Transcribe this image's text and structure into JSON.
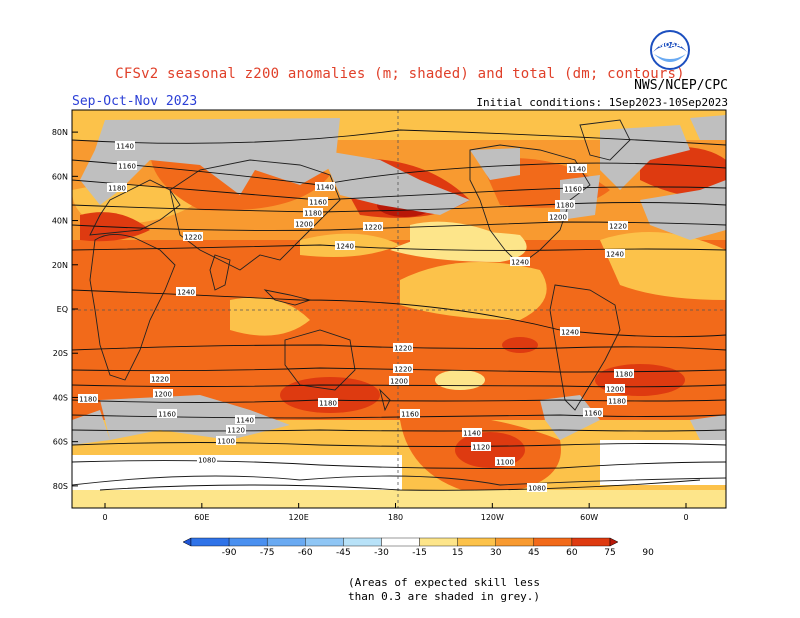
{
  "title": "CFSv2 seasonal z200 anomalies (m; shaded) and total (dm; contours)",
  "season": "Sep-Oct-Nov 2023",
  "initial_conditions": "Initial conditions: 1Sep2023-10Sep2023",
  "agency": "NWS/NCEP/CPC",
  "logo_text": "NOAA",
  "skill_note_line1": "(Areas of expected skill less",
  "skill_note_line2": "than 0.3 are shaded in grey.)",
  "lat_labels": [
    "80N",
    "60N",
    "40N",
    "20N",
    "EQ",
    "20S",
    "40S",
    "60S",
    "80S"
  ],
  "lon_labels": [
    "0",
    "60E",
    "120E",
    "180",
    "120W",
    "60W",
    "0"
  ],
  "colorbar_ticks": [
    "-90",
    "-75",
    "-60",
    "-45",
    "-30",
    "-15",
    "15",
    "30",
    "45",
    "60",
    "75",
    "90"
  ],
  "colorbar_colors": [
    "#1f55d6",
    "#2f73e8",
    "#4a90f0",
    "#6aaaf2",
    "#8fc6f5",
    "#b8e2f8",
    "#ffffff",
    "#fde58a",
    "#fcc24a",
    "#f89a30",
    "#f26a1a",
    "#de3a10",
    "#b81808"
  ],
  "contour_labels": [
    {
      "text": "1140"
    },
    {
      "text": "1160"
    },
    {
      "text": "1180"
    },
    {
      "text": "1140"
    },
    {
      "text": "1160"
    },
    {
      "text": "1180"
    },
    {
      "text": "1200"
    },
    {
      "text": "1220"
    },
    {
      "text": "1240"
    },
    {
      "text": "1220"
    },
    {
      "text": "1140"
    },
    {
      "text": "1160"
    },
    {
      "text": "1180"
    },
    {
      "text": "1200"
    },
    {
      "text": "1220"
    },
    {
      "text": "1240"
    },
    {
      "text": "1240"
    },
    {
      "text": "1240"
    },
    {
      "text": "1240"
    },
    {
      "text": "1220"
    },
    {
      "text": "1200"
    },
    {
      "text": "1220"
    },
    {
      "text": "1200"
    },
    {
      "text": "1180"
    },
    {
      "text": "1220"
    },
    {
      "text": "1200"
    },
    {
      "text": "1180"
    },
    {
      "text": "1160"
    },
    {
      "text": "1140"
    },
    {
      "text": "1120"
    },
    {
      "text": "1100"
    },
    {
      "text": "1180"
    },
    {
      "text": "1160"
    },
    {
      "text": "1140"
    },
    {
      "text": "1120"
    },
    {
      "text": "1100"
    },
    {
      "text": "1180"
    },
    {
      "text": "1160"
    },
    {
      "text": "1080"
    },
    {
      "text": "1080"
    }
  ]
}
